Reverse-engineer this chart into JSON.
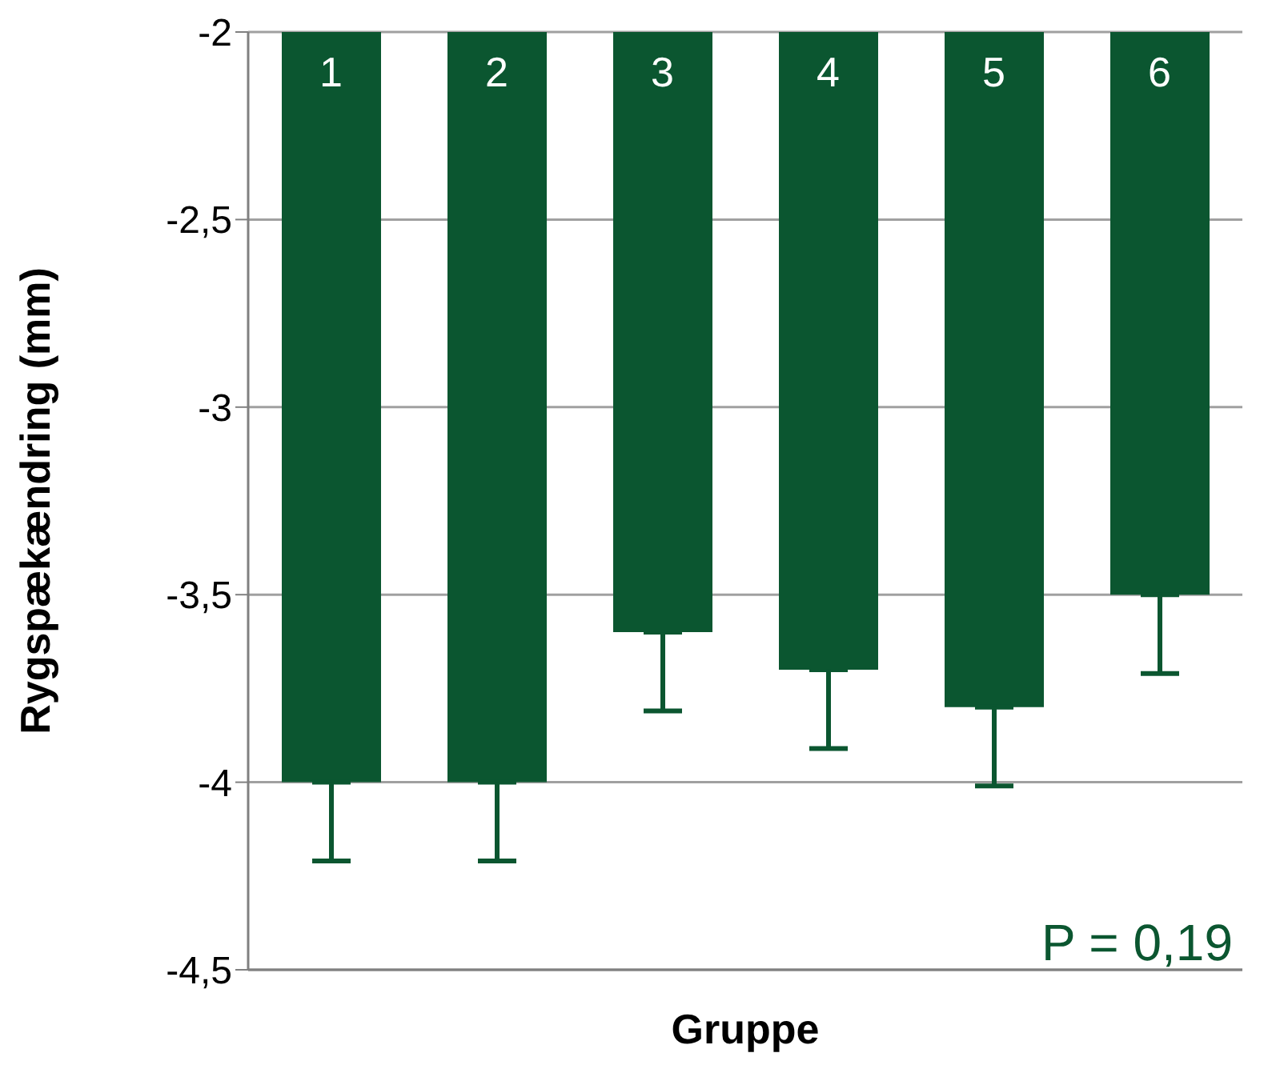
{
  "chart_data": {
    "type": "bar",
    "xlabel": "Gruppe",
    "ylabel": "Rygspækændring (mm)",
    "categories": [
      "1",
      "2",
      "3",
      "4",
      "5",
      "6"
    ],
    "values": [
      -4,
      -4,
      -3.6,
      -3.7,
      -3.8,
      -3.5
    ],
    "errors": [
      [
        -4.21,
        -4
      ],
      [
        -4.21,
        -4
      ],
      [
        -3.81,
        -3.6
      ],
      [
        -3.91,
        -3.7
      ],
      [
        -4.01,
        -3.8
      ],
      [
        -3.71,
        -3.5
      ]
    ],
    "color": "#0b5630",
    "ylim": [
      -4.5,
      -2
    ],
    "yticks": [
      {
        "value": -4.5,
        "label": "-4,5"
      },
      -4,
      {
        "value": -3.5,
        "label": "-3,5"
      },
      -3,
      {
        "value": -2.5,
        "label": "-2,5"
      },
      -2
    ],
    "grid": "y",
    "annotations": [
      "P = 0,19"
    ]
  }
}
